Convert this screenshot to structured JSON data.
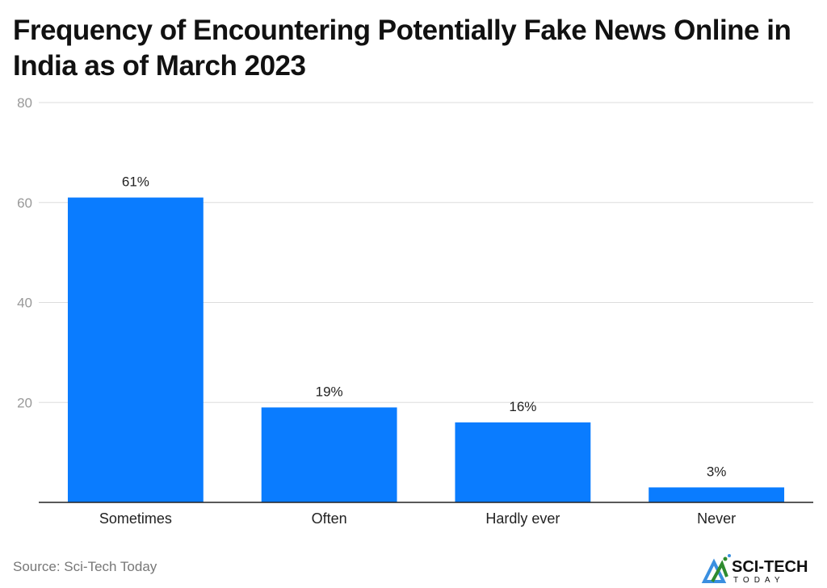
{
  "title": "Frequency of Encountering Potentially Fake News Online in India as of March 2023",
  "source": "Source: Sci-Tech Today",
  "logo_text": "SCI-TECH TODAY",
  "chart_data": {
    "type": "bar",
    "title": "Frequency of Encountering Potentially Fake News Online in India as of March 2023",
    "categories": [
      "Sometimes",
      "Often",
      "Hardly ever",
      "Never"
    ],
    "values": [
      61,
      19,
      16,
      3
    ],
    "data_labels": [
      "61%",
      "19%",
      "16%",
      "3%"
    ],
    "ylim": [
      0,
      80
    ],
    "yticks": [
      20,
      40,
      60,
      80
    ],
    "grid": true,
    "bar_color": "#0a7cff",
    "xlabel": "",
    "ylabel": ""
  }
}
